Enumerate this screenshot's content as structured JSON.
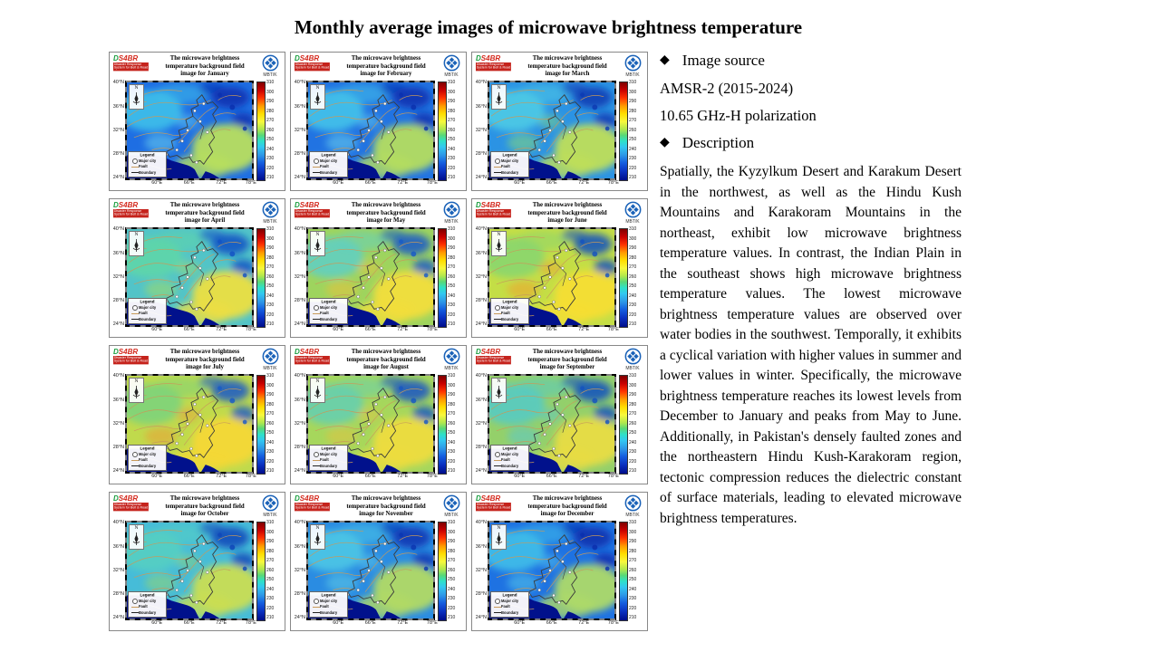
{
  "page": {
    "title": "Monthly average images of microwave brightness temperature"
  },
  "sidebar": {
    "source_heading": "Image source",
    "source_line1": "AMSR-2 (2015-2024)",
    "source_line2": "10.65 GHz-H polarization",
    "description_heading": "Description",
    "description": "Spatially, the Kyzylkum Desert and Karakum Desert in the northwest, as well as the Hindu Kush Mountains and Karakoram Mountains in the northeast, exhibit low microwave brightness temperature values. In contrast, the Indian Plain in the southeast shows high microwave brightness temperature values. The lowest microwave brightness temperature values are observed over water bodies in the southwest. Temporally, it exhibits a cyclical variation with higher values in summer and lower values in winter. Specifically, the microwave brightness temperature reaches its lowest levels from December to January and peaks from May to June. Additionally, in Pakistan's densely faulted zones and the northeastern Hindu Kush-Karakoram region, tectonic compression reduces the dielectric constant of surface materials, leading to elevated microwave brightness temperatures.",
    "bullet_glyph": "◆"
  },
  "panel_common": {
    "title_line1": "The microwave brightness",
    "title_line2": "temperature background field",
    "title_prefix": "image for",
    "unit_label": "MBT/K",
    "north_label": "N",
    "logo_text": "DS4BR",
    "logo_subtext": "Disaster Response System for Belt & Road",
    "colorbar_ticks": [
      "310",
      "300",
      "290",
      "280",
      "270",
      "260",
      "250",
      "240",
      "230",
      "220",
      "210"
    ],
    "lat_ticks": [
      "40°N",
      "36°N",
      "32°N",
      "28°N",
      "24°N"
    ],
    "lon_ticks": [
      "60°E",
      "66°E",
      "72°E",
      "78°E"
    ],
    "legend": {
      "title": "Legend",
      "items": [
        "Major city",
        "Fault",
        "Boundary"
      ]
    },
    "colors": {
      "sea": "#01118c",
      "fault": "#c89a5a",
      "boundary": "#3b3b3b",
      "emblem": "#1a62b8"
    }
  },
  "months": [
    {
      "label": "January",
      "map": {
        "base": "#1e6ee3",
        "nw": "#3fc0ea",
        "ne": "#0a2fae",
        "se": "#b8df5e",
        "accent": "#6fd9ee"
      }
    },
    {
      "label": "February",
      "map": {
        "base": "#2173e2",
        "nw": "#44c3ea",
        "ne": "#0a2fae",
        "se": "#b4dd60",
        "accent": "#6fd9ee"
      }
    },
    {
      "label": "March",
      "map": {
        "base": "#2b93e4",
        "nw": "#4ecbe6",
        "ne": "#0c38b2",
        "se": "#bfdf58",
        "accent": "#8fdf70"
      }
    },
    {
      "label": "April",
      "map": {
        "base": "#52c4c8",
        "nw": "#5ed6a8",
        "ne": "#1150c4",
        "se": "#ecdf42",
        "accent": "#a8dd5e"
      }
    },
    {
      "label": "May",
      "map": {
        "base": "#9ed45e",
        "nw": "#62cfc0",
        "ne": "#1658c8",
        "se": "#f2de3c",
        "accent": "#f0c03a"
      }
    },
    {
      "label": "June",
      "map": {
        "base": "#c4de46",
        "nw": "#8ad66e",
        "ne": "#1350c0",
        "se": "#f6de32",
        "accent": "#f49b2c"
      }
    },
    {
      "label": "July",
      "map": {
        "base": "#c0da4c",
        "nw": "#7ed47a",
        "ne": "#1658c8",
        "se": "#f4d836",
        "accent": "#f09a30"
      }
    },
    {
      "label": "August",
      "map": {
        "base": "#a6d75c",
        "nw": "#66cfae",
        "ne": "#1454c4",
        "se": "#eedc3e",
        "accent": "#e8c23e"
      }
    },
    {
      "label": "September",
      "map": {
        "base": "#94d06a",
        "nw": "#58cbc2",
        "ne": "#1150c0",
        "se": "#e8dc44",
        "accent": "#54c8d8"
      }
    },
    {
      "label": "October",
      "map": {
        "base": "#46bcd8",
        "nw": "#55cfc2",
        "ne": "#0e44b8",
        "se": "#cade52",
        "accent": "#9ad867"
      }
    },
    {
      "label": "November",
      "map": {
        "base": "#2a8ce2",
        "nw": "#4cc6e6",
        "ne": "#0a34b0",
        "se": "#b2da64",
        "accent": "#63d2e6"
      }
    },
    {
      "label": "December",
      "map": {
        "base": "#1e72e2",
        "nw": "#40bfe9",
        "ne": "#0a2dac",
        "se": "#aeda68",
        "accent": "#5ad0ea"
      }
    }
  ]
}
